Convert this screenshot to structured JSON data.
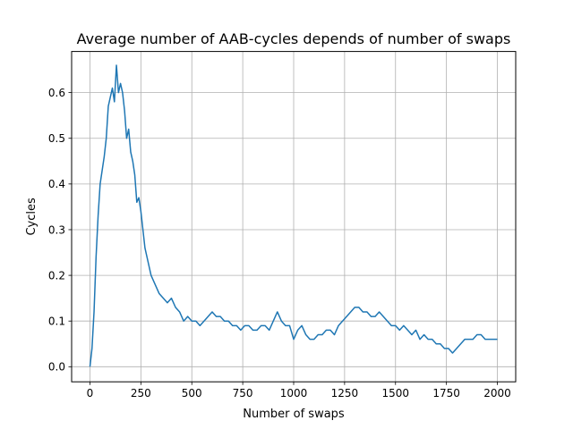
{
  "chart_data": {
    "type": "line",
    "title": "Average number of AAB-cycles depends of number of swaps",
    "xlabel": "Number of swaps",
    "ylabel": "Cycles",
    "xlim": [
      -90,
      2090
    ],
    "ylim": [
      -0.033,
      0.69
    ],
    "grid": true,
    "x_ticks": [
      0,
      250,
      500,
      750,
      1000,
      1250,
      1500,
      1750,
      2000
    ],
    "y_ticks": [
      0.0,
      0.1,
      0.2,
      0.3,
      0.4,
      0.5,
      0.6
    ],
    "x_tick_labels": [
      "0",
      "250",
      "500",
      "750",
      "1000",
      "1250",
      "1500",
      "1750",
      "2000"
    ],
    "y_tick_labels": [
      "0.0",
      "0.1",
      "0.2",
      "0.3",
      "0.4",
      "0.5",
      "0.6"
    ],
    "colors": {
      "line": "#1f77b4",
      "grid": "#b0b0b0",
      "axes": "#000000"
    },
    "series": [
      {
        "x": [
          0,
          10,
          20,
          30,
          40,
          50,
          60,
          70,
          80,
          90,
          100,
          110,
          120,
          130,
          140,
          150,
          160,
          170,
          180,
          190,
          200,
          210,
          220,
          230,
          240,
          250,
          260,
          270,
          280,
          290,
          300,
          320,
          340,
          360,
          380,
          400,
          420,
          440,
          460,
          480,
          500,
          520,
          540,
          560,
          580,
          600,
          620,
          640,
          660,
          680,
          700,
          720,
          740,
          760,
          780,
          800,
          820,
          840,
          860,
          880,
          900,
          920,
          940,
          960,
          980,
          1000,
          1020,
          1040,
          1060,
          1080,
          1100,
          1120,
          1140,
          1160,
          1180,
          1200,
          1220,
          1240,
          1260,
          1280,
          1300,
          1320,
          1340,
          1360,
          1380,
          1400,
          1420,
          1440,
          1460,
          1480,
          1500,
          1520,
          1540,
          1560,
          1580,
          1600,
          1620,
          1640,
          1660,
          1680,
          1700,
          1720,
          1740,
          1760,
          1780,
          1800,
          1820,
          1840,
          1860,
          1880,
          1900,
          1920,
          1940,
          1960,
          1980,
          2000
        ],
        "y": [
          0.0,
          0.04,
          0.12,
          0.24,
          0.33,
          0.4,
          0.43,
          0.46,
          0.5,
          0.57,
          0.59,
          0.61,
          0.58,
          0.66,
          0.6,
          0.62,
          0.6,
          0.56,
          0.5,
          0.52,
          0.47,
          0.45,
          0.42,
          0.36,
          0.37,
          0.34,
          0.3,
          0.26,
          0.24,
          0.22,
          0.2,
          0.18,
          0.16,
          0.15,
          0.14,
          0.15,
          0.13,
          0.12,
          0.1,
          0.11,
          0.1,
          0.1,
          0.09,
          0.1,
          0.11,
          0.12,
          0.11,
          0.11,
          0.1,
          0.1,
          0.09,
          0.09,
          0.08,
          0.09,
          0.09,
          0.08,
          0.08,
          0.09,
          0.09,
          0.08,
          0.1,
          0.12,
          0.1,
          0.09,
          0.09,
          0.06,
          0.08,
          0.09,
          0.07,
          0.06,
          0.06,
          0.07,
          0.07,
          0.08,
          0.08,
          0.07,
          0.09,
          0.1,
          0.11,
          0.12,
          0.13,
          0.13,
          0.12,
          0.12,
          0.11,
          0.11,
          0.12,
          0.11,
          0.1,
          0.09,
          0.09,
          0.08,
          0.09,
          0.08,
          0.07,
          0.08,
          0.06,
          0.07,
          0.06,
          0.06,
          0.05,
          0.05,
          0.04,
          0.04,
          0.03,
          0.04,
          0.05,
          0.06,
          0.06,
          0.06,
          0.07,
          0.07,
          0.06,
          0.06,
          0.06,
          0.06
        ]
      }
    ]
  }
}
